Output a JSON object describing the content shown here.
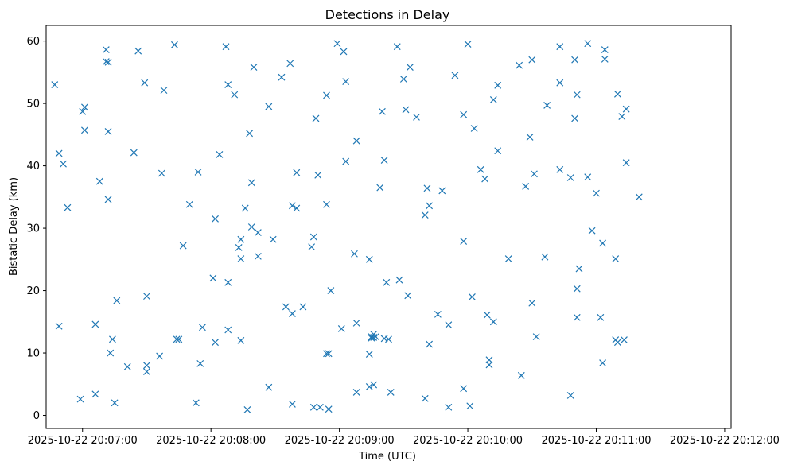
{
  "chart_data": {
    "type": "scatter",
    "title": "Detections in Delay",
    "xlabel": "Time (UTC)",
    "ylabel": "Bistatic Delay (km)",
    "marker": "x",
    "color": "#1f77b4",
    "grid": false,
    "legend": "none",
    "xlim": [
      "2025-10-22 20:06:43",
      "2025-10-22 20:12:03"
    ],
    "ylim": [
      -2.1,
      62.5
    ],
    "x_ticks": [
      "2025-10-22 20:07:00",
      "2025-10-22 20:08:00",
      "2025-10-22 20:09:00",
      "2025-10-22 20:10:00",
      "2025-10-22 20:11:00",
      "2025-10-22 20:12:00"
    ],
    "y_ticks": [
      0,
      10,
      20,
      30,
      40,
      50,
      60
    ],
    "time_axis_date": "2025-10-22",
    "points": [
      [
        "20:06:47",
        53.0
      ],
      [
        "20:06:49",
        14.3
      ],
      [
        "20:06:49",
        42.0
      ],
      [
        "20:06:51",
        40.3
      ],
      [
        "20:06:53",
        33.3
      ],
      [
        "20:06:59",
        2.6
      ],
      [
        "20:07:00",
        48.7
      ],
      [
        "20:07:01",
        45.7
      ],
      [
        "20:07:01",
        49.4
      ],
      [
        "20:07:06",
        3.4
      ],
      [
        "20:07:06",
        14.6
      ],
      [
        "20:07:08",
        37.5
      ],
      [
        "20:07:11",
        58.6
      ],
      [
        "20:07:11",
        56.7
      ],
      [
        "20:07:12",
        56.6
      ],
      [
        "20:07:12",
        45.5
      ],
      [
        "20:07:12",
        34.6
      ],
      [
        "20:07:13",
        10.0
      ],
      [
        "20:07:14",
        12.2
      ],
      [
        "20:07:15",
        2.0
      ],
      [
        "20:07:16",
        18.4
      ],
      [
        "20:07:21",
        7.8
      ],
      [
        "20:07:24",
        42.1
      ],
      [
        "20:07:26",
        58.4
      ],
      [
        "20:07:29",
        53.3
      ],
      [
        "20:07:30",
        19.1
      ],
      [
        "20:07:30",
        8.0
      ],
      [
        "20:07:30",
        7.0
      ],
      [
        "20:07:36",
        9.5
      ],
      [
        "20:07:37",
        38.8
      ],
      [
        "20:07:38",
        52.1
      ],
      [
        "20:07:43",
        59.4
      ],
      [
        "20:07:44",
        12.2
      ],
      [
        "20:07:45",
        12.2
      ],
      [
        "20:07:47",
        27.2
      ],
      [
        "20:07:50",
        33.8
      ],
      [
        "20:07:53",
        2.0
      ],
      [
        "20:07:54",
        39.0
      ],
      [
        "20:07:55",
        8.3
      ],
      [
        "20:07:56",
        14.1
      ],
      [
        "20:08:01",
        22.0
      ],
      [
        "20:08:02",
        31.5
      ],
      [
        "20:08:02",
        11.7
      ],
      [
        "20:08:04",
        41.8
      ],
      [
        "20:08:07",
        59.1
      ],
      [
        "20:08:08",
        21.3
      ],
      [
        "20:08:08",
        53.0
      ],
      [
        "20:08:08",
        13.7
      ],
      [
        "20:08:11",
        51.4
      ],
      [
        "20:08:13",
        26.9
      ],
      [
        "20:08:14",
        28.2
      ],
      [
        "20:08:14",
        25.1
      ],
      [
        "20:08:14",
        12.0
      ],
      [
        "20:08:16",
        33.2
      ],
      [
        "20:08:17",
        0.9
      ],
      [
        "20:08:18",
        45.2
      ],
      [
        "20:08:19",
        37.3
      ],
      [
        "20:08:19",
        30.2
      ],
      [
        "20:08:20",
        55.8
      ],
      [
        "20:08:22",
        25.5
      ],
      [
        "20:08:22",
        29.3
      ],
      [
        "20:08:27",
        49.5
      ],
      [
        "20:08:27",
        4.5
      ],
      [
        "20:08:29",
        28.2
      ],
      [
        "20:08:33",
        54.2
      ],
      [
        "20:08:35",
        17.4
      ],
      [
        "20:08:37",
        56.4
      ],
      [
        "20:08:38",
        33.6
      ],
      [
        "20:08:38",
        16.3
      ],
      [
        "20:08:38",
        1.8
      ],
      [
        "20:08:40",
        33.2
      ],
      [
        "20:08:40",
        38.9
      ],
      [
        "20:08:43",
        17.4
      ],
      [
        "20:08:47",
        27.0
      ],
      [
        "20:08:48",
        28.6
      ],
      [
        "20:08:48",
        1.3
      ],
      [
        "20:08:49",
        47.6
      ],
      [
        "20:08:50",
        38.5
      ],
      [
        "20:08:51",
        1.3
      ],
      [
        "20:08:54",
        51.3
      ],
      [
        "20:08:54",
        33.8
      ],
      [
        "20:08:54",
        9.9
      ],
      [
        "20:08:55",
        1.0
      ],
      [
        "20:08:55",
        9.9
      ],
      [
        "20:08:56",
        20.0
      ],
      [
        "20:08:59",
        59.6
      ],
      [
        "20:09:01",
        13.9
      ],
      [
        "20:09:02",
        58.3
      ],
      [
        "20:09:03",
        53.5
      ],
      [
        "20:09:03",
        40.7
      ],
      [
        "20:09:07",
        25.9
      ],
      [
        "20:09:08",
        3.7
      ],
      [
        "20:09:08",
        44.0
      ],
      [
        "20:09:08",
        14.8
      ],
      [
        "20:09:14",
        25.0
      ],
      [
        "20:09:14",
        9.8
      ],
      [
        "20:09:14",
        4.6
      ],
      [
        "20:09:15",
        12.4
      ],
      [
        "20:09:15",
        12.6
      ],
      [
        "20:09:16",
        12.5
      ],
      [
        "20:09:16",
        13.0
      ],
      [
        "20:09:16",
        4.9
      ],
      [
        "20:09:17",
        12.6
      ],
      [
        "20:09:19",
        36.5
      ],
      [
        "20:09:20",
        48.7
      ],
      [
        "20:09:21",
        40.9
      ],
      [
        "20:09:21",
        12.3
      ],
      [
        "20:09:22",
        21.3
      ],
      [
        "20:09:23",
        12.2
      ],
      [
        "20:09:24",
        3.7
      ],
      [
        "20:09:27",
        59.1
      ],
      [
        "20:09:28",
        21.7
      ],
      [
        "20:09:30",
        53.9
      ],
      [
        "20:09:31",
        49.0
      ],
      [
        "20:09:32",
        19.2
      ],
      [
        "20:09:33",
        55.8
      ],
      [
        "20:09:36",
        47.8
      ],
      [
        "20:09:40",
        2.7
      ],
      [
        "20:09:40",
        32.1
      ],
      [
        "20:09:41",
        36.4
      ],
      [
        "20:09:42",
        33.6
      ],
      [
        "20:09:42",
        11.4
      ],
      [
        "20:09:46",
        16.2
      ],
      [
        "20:09:48",
        36.0
      ],
      [
        "20:09:51",
        1.3
      ],
      [
        "20:09:51",
        14.5
      ],
      [
        "20:09:54",
        54.5
      ],
      [
        "20:09:58",
        48.2
      ],
      [
        "20:09:58",
        27.9
      ],
      [
        "20:09:58",
        4.3
      ],
      [
        "20:10:00",
        59.5
      ],
      [
        "20:10:01",
        1.5
      ],
      [
        "20:10:02",
        19.0
      ],
      [
        "20:10:03",
        46.0
      ],
      [
        "20:10:06",
        39.4
      ],
      [
        "20:10:08",
        37.9
      ],
      [
        "20:10:09",
        16.1
      ],
      [
        "20:10:10",
        8.9
      ],
      [
        "20:10:10",
        8.1
      ],
      [
        "20:10:12",
        50.6
      ],
      [
        "20:10:12",
        15.0
      ],
      [
        "20:10:14",
        52.9
      ],
      [
        "20:10:14",
        42.4
      ],
      [
        "20:10:19",
        25.1
      ],
      [
        "20:10:24",
        56.1
      ],
      [
        "20:10:25",
        6.4
      ],
      [
        "20:10:27",
        36.7
      ],
      [
        "20:10:29",
        44.6
      ],
      [
        "20:10:30",
        57.0
      ],
      [
        "20:10:30",
        18.0
      ],
      [
        "20:10:31",
        38.7
      ],
      [
        "20:10:32",
        12.6
      ],
      [
        "20:10:36",
        25.4
      ],
      [
        "20:10:37",
        49.7
      ],
      [
        "20:10:43",
        59.1
      ],
      [
        "20:10:43",
        53.3
      ],
      [
        "20:10:43",
        39.4
      ],
      [
        "20:10:48",
        38.1
      ],
      [
        "20:10:48",
        3.2
      ],
      [
        "20:10:50",
        47.6
      ],
      [
        "20:10:50",
        57.0
      ],
      [
        "20:10:51",
        51.4
      ],
      [
        "20:10:51",
        20.3
      ],
      [
        "20:10:51",
        15.7
      ],
      [
        "20:10:52",
        23.5
      ],
      [
        "20:10:56",
        38.2
      ],
      [
        "20:10:56",
        59.6
      ],
      [
        "20:10:58",
        29.6
      ],
      [
        "20:11:00",
        35.6
      ],
      [
        "20:11:02",
        15.7
      ],
      [
        "20:11:03",
        27.6
      ],
      [
        "20:11:03",
        8.4
      ],
      [
        "20:11:04",
        57.1
      ],
      [
        "20:11:04",
        58.6
      ],
      [
        "20:11:09",
        25.1
      ],
      [
        "20:11:09",
        12.1
      ],
      [
        "20:11:10",
        51.5
      ],
      [
        "20:11:10",
        11.7
      ],
      [
        "20:11:12",
        47.9
      ],
      [
        "20:11:13",
        12.1
      ],
      [
        "20:11:14",
        40.5
      ],
      [
        "20:11:14",
        49.1
      ],
      [
        "20:11:20",
        35.0
      ]
    ]
  }
}
